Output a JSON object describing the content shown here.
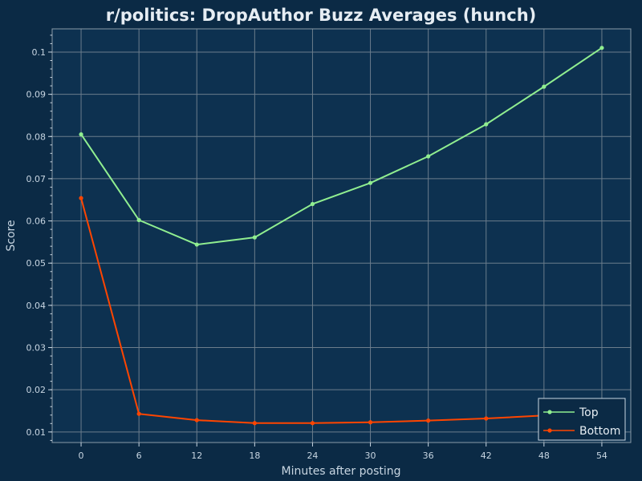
{
  "chart_data": {
    "type": "line",
    "title": "r/politics: DropAuthor Buzz Averages (hunch)",
    "xlabel": "Minutes after posting",
    "ylabel": "Score",
    "x": [
      0,
      6,
      12,
      18,
      24,
      30,
      36,
      42,
      48,
      54
    ],
    "xlim": [
      -3,
      57
    ],
    "ylim": [
      0.0075,
      0.1055
    ],
    "xticks": [
      0,
      6,
      12,
      18,
      24,
      30,
      36,
      42,
      48,
      54
    ],
    "yticks": [
      0.01,
      0.02,
      0.03,
      0.04,
      0.05,
      0.06,
      0.07,
      0.08,
      0.09,
      0.1
    ],
    "ytick_labels": [
      "0.01",
      "0.02",
      "0.03",
      "0.04",
      "0.05",
      "0.06",
      "0.07",
      "0.08",
      "0.09",
      "0.1"
    ],
    "grid": true,
    "legend_position": "bottom-right",
    "series": [
      {
        "name": "Top",
        "color": "#90ee90",
        "values": [
          0.0805,
          0.0602,
          0.0544,
          0.0561,
          0.064,
          0.069,
          0.0753,
          0.0829,
          0.0918,
          0.101
        ]
      },
      {
        "name": "Bottom",
        "color": "#ff4500",
        "values": [
          0.0654,
          0.0143,
          0.0128,
          0.0121,
          0.0121,
          0.0123,
          0.0127,
          0.0132,
          0.0139,
          0.015
        ]
      }
    ]
  }
}
